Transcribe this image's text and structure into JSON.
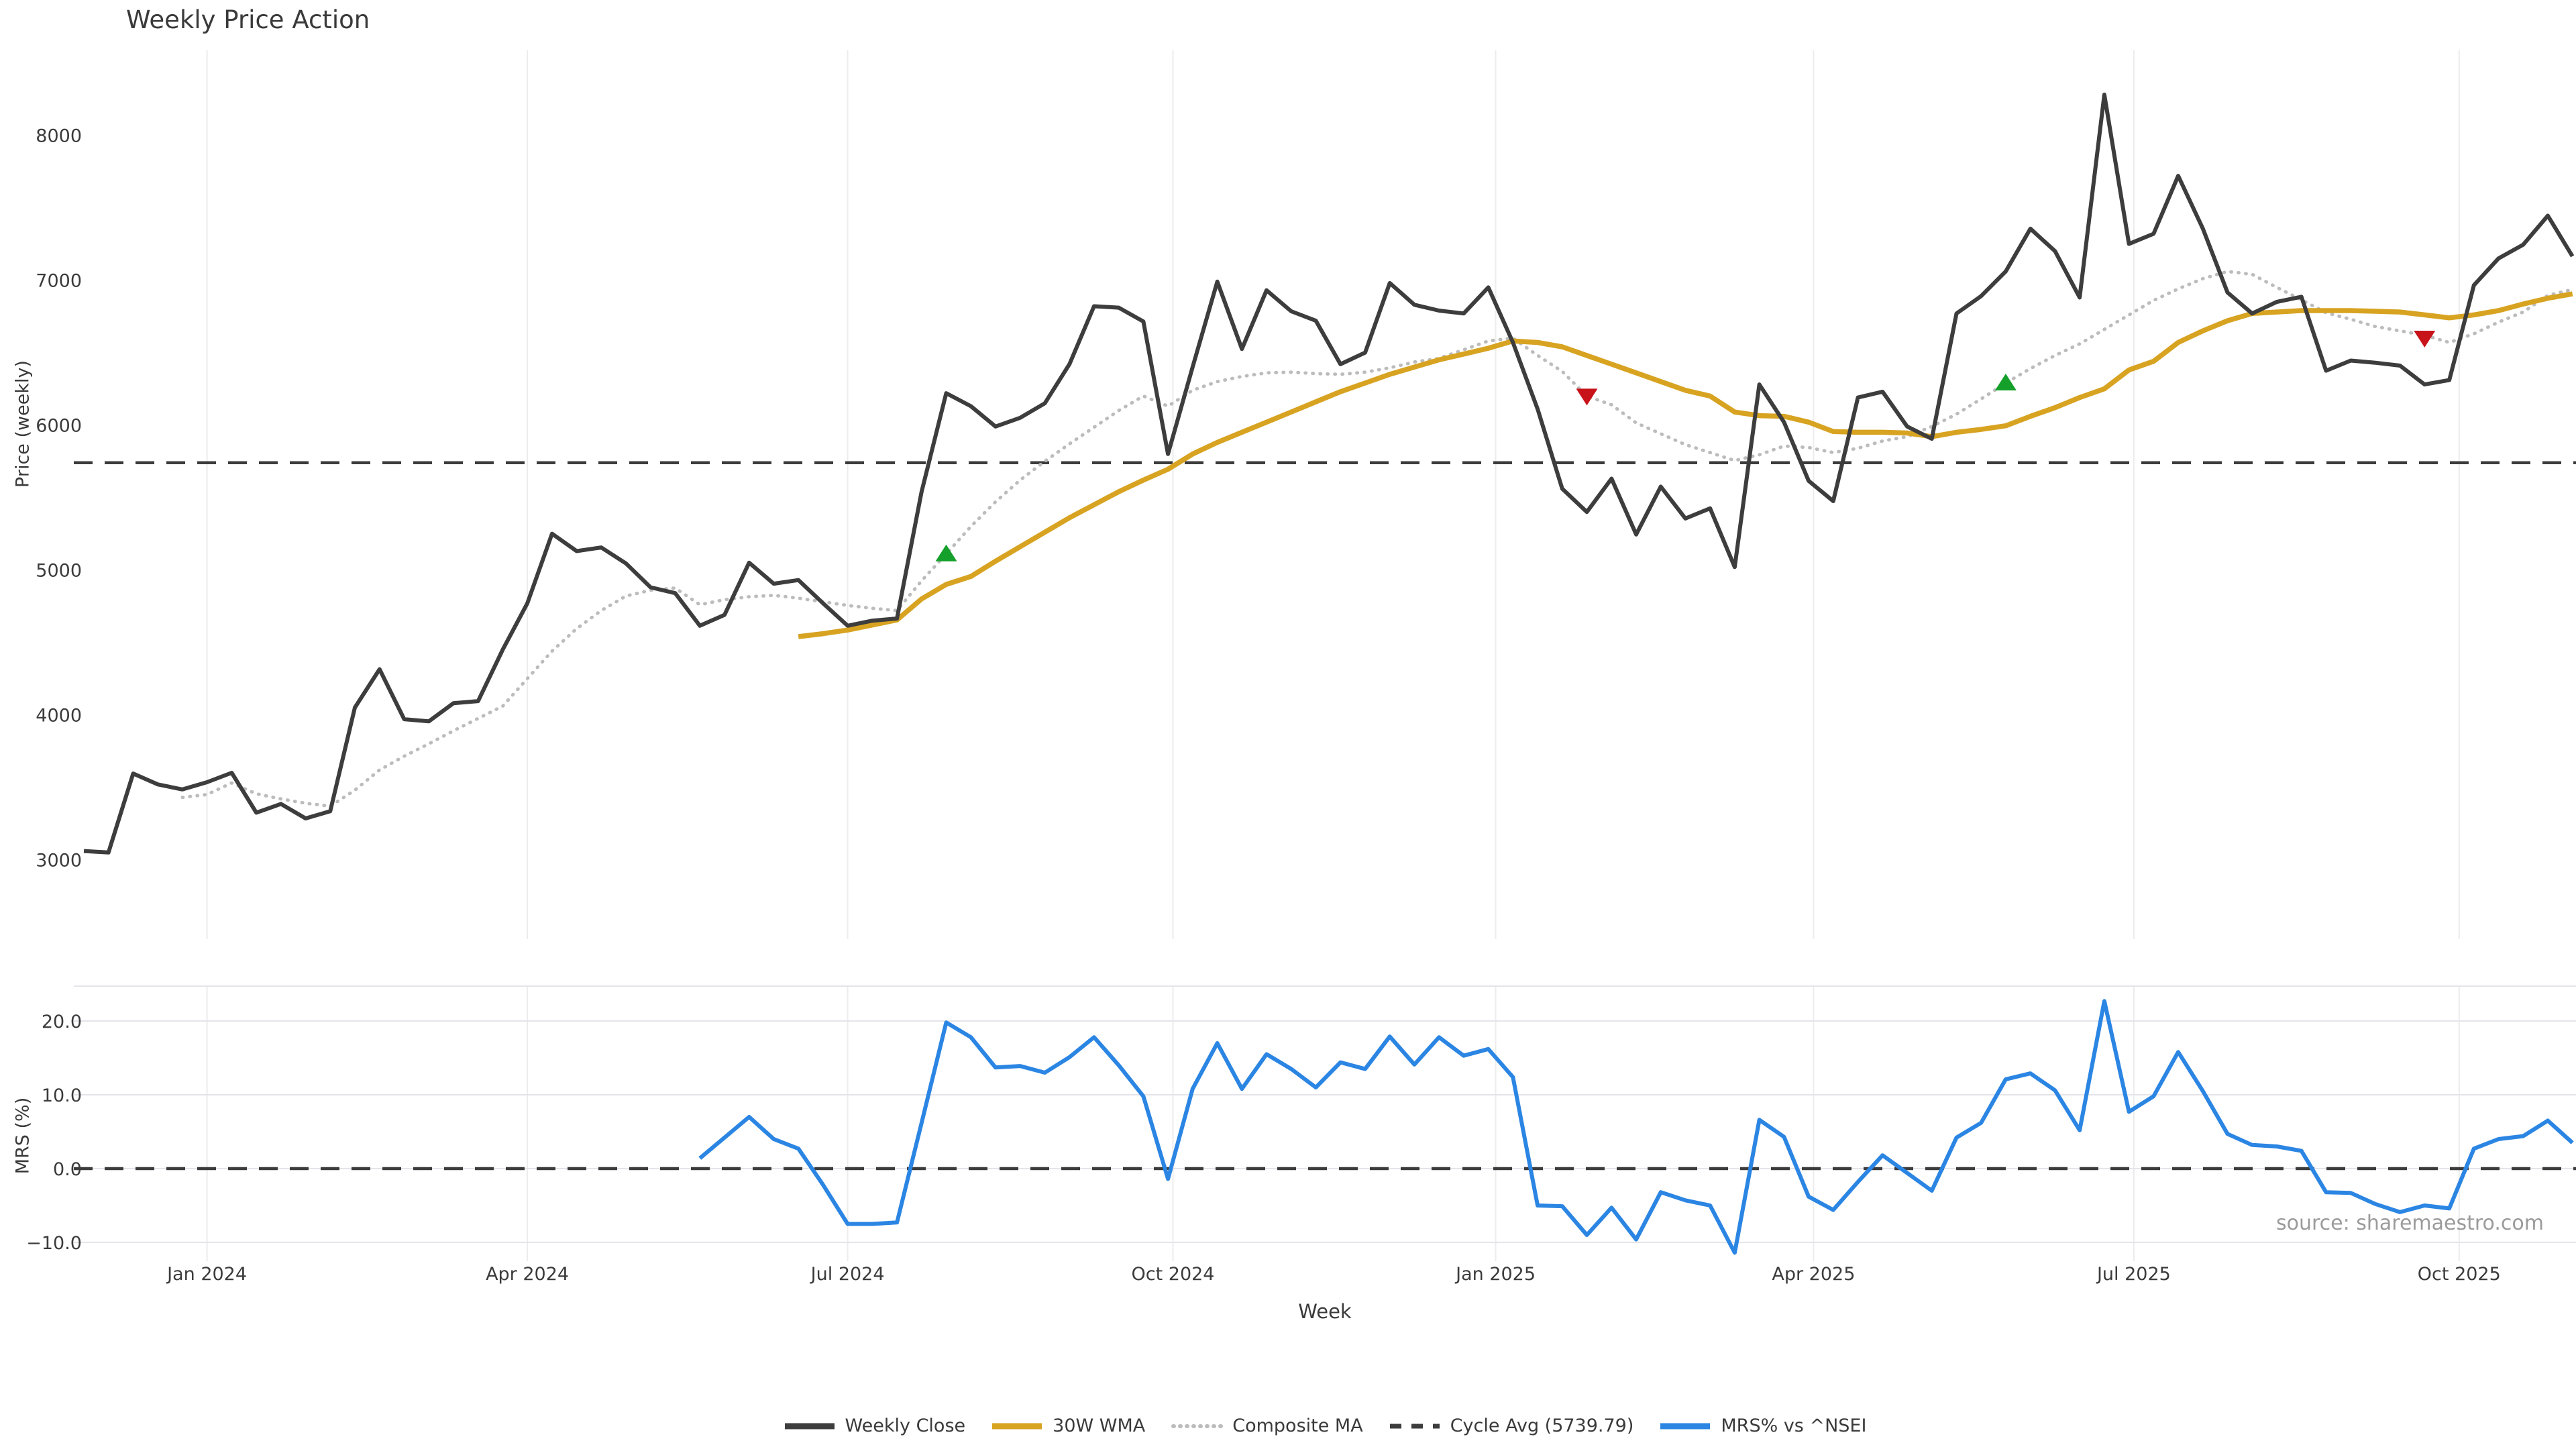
{
  "title": "Weekly Price Action",
  "source": "source: sharemaestro.com",
  "legend": {
    "items": [
      {
        "label": "Weekly Close"
      },
      {
        "label": "30W WMA"
      },
      {
        "label": "Composite MA"
      },
      {
        "label": "Cycle Avg (5739.79)"
      },
      {
        "label": "MRS% vs ^NSEI"
      }
    ]
  },
  "colors": {
    "close": "#3d3d3d",
    "wma": "#d7a321",
    "composite": "#bcbcbc",
    "cycle": "#3c3c3c",
    "mrs": "#2b85e3",
    "buy": "#14a02a",
    "sell": "#c8131b",
    "grid_v": "#ececec",
    "grid_h": "#e4e4ea",
    "tick": "#3b3b3b"
  },
  "chart_data": [
    {
      "type": "line",
      "panel": "price",
      "title": "Weekly Price Action",
      "ylabel": "Price (weekly)",
      "xlabel": "Week",
      "x_tick_labels": [
        "Jan 2024",
        "Apr 2024",
        "Jul 2024",
        "Oct 2024",
        "Jan 2025",
        "Apr 2025",
        "Jul 2025",
        "Oct 2025"
      ],
      "y_ticks": [
        {
          "label": "8000",
          "value": 8000
        },
        {
          "label": "7000",
          "value": 7000
        },
        {
          "label": "6000",
          "value": 6000
        },
        {
          "label": "5000",
          "value": 5000
        },
        {
          "label": "4000",
          "value": 4000
        },
        {
          "label": "3000",
          "value": 3000
        }
      ],
      "ylim": [
        2750,
        8600
      ],
      "grid": "vertical-only",
      "legend_position": "bottom-center",
      "cycle_avg": 5739.79,
      "series": [
        {
          "name": "Weekly Close",
          "color_key": "close",
          "start_week": 0,
          "values": [
            3060,
            3050,
            3595,
            3520,
            3485,
            3535,
            3600,
            3325,
            3385,
            3285,
            3335,
            4050,
            4315,
            3970,
            3955,
            4080,
            4095,
            4450,
            4770,
            5250,
            5130,
            5155,
            5045,
            4880,
            4840,
            4615,
            4690,
            5050,
            4905,
            4930,
            4770,
            4615,
            4650,
            4665,
            5540,
            6220,
            6130,
            5990,
            6050,
            6150,
            6420,
            6820,
            6810,
            6715,
            5800,
            6400,
            6990,
            6525,
            6930,
            6785,
            6720,
            6420,
            6500,
            6980,
            6830,
            6790,
            6770,
            6950,
            6570,
            6110,
            5560,
            5400,
            5630,
            5245,
            5575,
            5355,
            5425,
            5020,
            6280,
            6020,
            5615,
            5475,
            6190,
            6230,
            5990,
            5905,
            6770,
            6890,
            7060,
            7355,
            7200,
            6880,
            8280,
            7250,
            7320,
            7720,
            7355,
            6915,
            6770,
            6850,
            6885,
            6375,
            6445,
            6430,
            6410,
            6280,
            6310,
            6965,
            7150,
            7245,
            7445,
            7165
          ]
        },
        {
          "name": "30W WMA",
          "color_key": "wma",
          "start_week": 29,
          "values": [
            4540,
            4560,
            4585,
            4620,
            4655,
            4800,
            4900,
            4955,
            5060,
            5160,
            5260,
            5360,
            5450,
            5540,
            5620,
            5695,
            5800,
            5880,
            5950,
            6020,
            6090,
            6160,
            6230,
            6290,
            6350,
            6400,
            6450,
            6490,
            6530,
            6580,
            6570,
            6540,
            6480,
            6420,
            6360,
            6300,
            6240,
            6200,
            6090,
            6065,
            6060,
            6020,
            5955,
            5950,
            5950,
            5945,
            5920,
            5950,
            5970,
            5995,
            6060,
            6120,
            6190,
            6250,
            6380,
            6440,
            6570,
            6650,
            6720,
            6770,
            6780,
            6790,
            6790,
            6790,
            6785,
            6780,
            6760,
            6740,
            6760,
            6790,
            6835,
            6875,
            6905
          ]
        },
        {
          "name": "Composite MA",
          "color_key": "composite",
          "style": "dotted",
          "start_week": 4,
          "values": [
            3430,
            3450,
            3530,
            3455,
            3420,
            3390,
            3370,
            3480,
            3620,
            3715,
            3800,
            3890,
            3975,
            4060,
            4250,
            4440,
            4595,
            4720,
            4820,
            4860,
            4875,
            4760,
            4795,
            4815,
            4825,
            4805,
            4780,
            4755,
            4735,
            4720,
            4925,
            5110,
            5300,
            5470,
            5620,
            5750,
            5870,
            5985,
            6100,
            6200,
            6130,
            6240,
            6300,
            6335,
            6360,
            6365,
            6355,
            6350,
            6365,
            6395,
            6435,
            6460,
            6520,
            6580,
            6600,
            6480,
            6370,
            6200,
            6140,
            6015,
            5940,
            5865,
            5810,
            5755,
            5795,
            5855,
            5845,
            5810,
            5840,
            5890,
            5920,
            5990,
            6075,
            6180,
            6290,
            6390,
            6480,
            6560,
            6660,
            6760,
            6860,
            6940,
            7010,
            7060,
            7040,
            6950,
            6865,
            6775,
            6730,
            6680,
            6650,
            6620,
            6570,
            6630,
            6710,
            6780,
            6895,
            6935
          ]
        }
      ],
      "markers": {
        "buy": [
          [
            35,
            5110
          ],
          [
            78,
            6290
          ]
        ],
        "sell": [
          [
            61,
            6200
          ],
          [
            95,
            6600
          ]
        ]
      }
    },
    {
      "type": "line",
      "panel": "mrs",
      "ylabel": "MRS (%)",
      "y_ticks": [
        {
          "label": "20.0",
          "value": 20
        },
        {
          "label": "10.0",
          "value": 10
        },
        {
          "label": "0.0",
          "value": 0
        },
        {
          "label": "−10.0",
          "value": -10
        }
      ],
      "ylim": [
        -14,
        25
      ],
      "zero_line": 0,
      "series": [
        {
          "name": "MRS% vs ^NSEI",
          "color_key": "mrs",
          "start_week": 25,
          "values": [
            1.4,
            4.2,
            7.0,
            4.0,
            2.7,
            -2.2,
            -7.5,
            -7.5,
            -7.3,
            6.2,
            19.8,
            17.8,
            13.7,
            13.9,
            13.0,
            15.1,
            17.8,
            14.0,
            9.8,
            -1.4,
            10.8,
            17.0,
            10.8,
            15.5,
            13.5,
            11.0,
            14.4,
            13.5,
            17.9,
            14.1,
            17.8,
            15.3,
            16.2,
            12.4,
            -5.0,
            -5.1,
            -9.0,
            -5.3,
            -9.6,
            -3.2,
            -4.3,
            -5.0,
            -11.4,
            6.6,
            4.3,
            -3.8,
            -5.6,
            -1.8,
            1.8,
            -0.6,
            -3.0,
            4.2,
            6.2,
            12.1,
            12.9,
            10.6,
            5.2,
            22.7,
            7.7,
            9.8,
            15.8,
            10.5,
            4.7,
            3.2,
            3.0,
            2.4,
            -3.2,
            -3.3,
            -4.8,
            -5.9,
            -5.0,
            -5.4,
            2.7,
            4.0,
            4.4,
            6.5,
            3.5
          ]
        }
      ]
    }
  ]
}
